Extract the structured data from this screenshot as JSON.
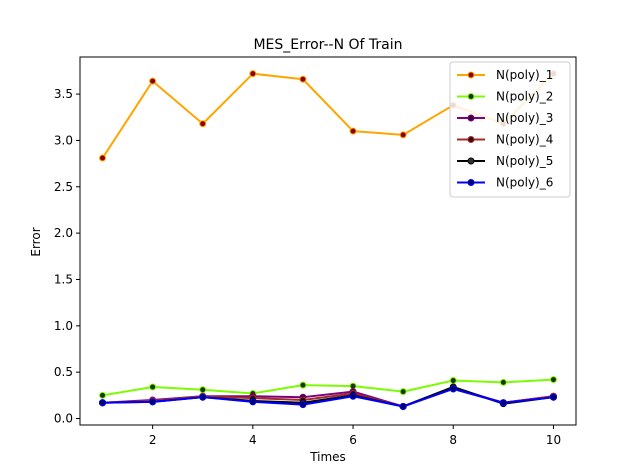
{
  "chart_data": {
    "type": "line",
    "title": "MES_Error--N Of Train",
    "xlabel": "Times",
    "ylabel": "Error",
    "x": [
      1,
      2,
      3,
      4,
      5,
      6,
      7,
      8,
      9,
      10
    ],
    "xlim": [
      0.55,
      10.45
    ],
    "ylim": [
      -0.07,
      3.9
    ],
    "x_ticks": [
      2,
      4,
      6,
      8,
      10
    ],
    "x_tick_labels": [
      "2",
      "4",
      "6",
      "8",
      "10"
    ],
    "y_ticks": [
      0.0,
      0.5,
      1.0,
      1.5,
      2.0,
      2.5,
      3.0,
      3.5
    ],
    "y_tick_labels": [
      "0.0",
      "0.5",
      "1.0",
      "1.5",
      "2.0",
      "2.5",
      "3.0",
      "3.5"
    ],
    "grid": false,
    "legend_position": "top-right",
    "series": [
      {
        "name": "N(poly)_1",
        "color": "#ffa500",
        "marker_face": "#8b0000",
        "values": [
          2.81,
          3.64,
          3.18,
          3.72,
          3.66,
          3.1,
          3.06,
          3.38,
          3.18,
          3.72
        ]
      },
      {
        "name": "N(poly)_2",
        "color": "#7cfc00",
        "marker_face": "#1a3300",
        "values": [
          0.25,
          0.34,
          0.31,
          0.27,
          0.36,
          0.35,
          0.29,
          0.41,
          0.39,
          0.42
        ]
      },
      {
        "name": "N(poly)_3",
        "color": "#800080",
        "marker_face": "#3a003a",
        "values": [
          0.17,
          0.2,
          0.24,
          0.24,
          0.23,
          0.29,
          0.13,
          0.33,
          0.17,
          0.24
        ]
      },
      {
        "name": "N(poly)_4",
        "color": "#a52a2a",
        "marker_face": "#3a0a0a",
        "values": [
          0.17,
          0.19,
          0.24,
          0.22,
          0.2,
          0.27,
          0.13,
          0.32,
          0.17,
          0.24
        ]
      },
      {
        "name": "N(poly)_5",
        "color": "#000000",
        "marker_face": "#333333",
        "values": [
          0.17,
          0.18,
          0.23,
          0.19,
          0.17,
          0.25,
          0.13,
          0.34,
          0.16,
          0.23
        ]
      },
      {
        "name": "N(poly)_6",
        "color": "#0000ff",
        "marker_face": "#000066",
        "values": [
          0.17,
          0.18,
          0.23,
          0.18,
          0.15,
          0.24,
          0.13,
          0.32,
          0.17,
          0.23
        ]
      }
    ]
  }
}
